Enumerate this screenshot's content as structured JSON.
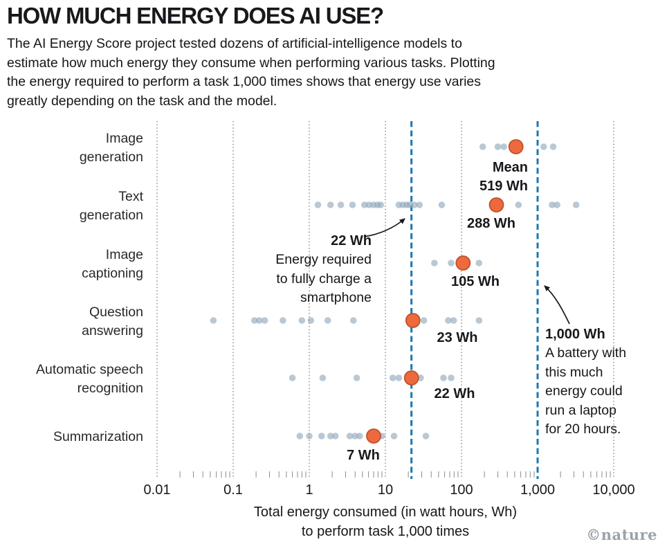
{
  "header": {
    "title": "HOW MUCH ENERGY DOES AI USE?",
    "subtitle_lines": [
      "The AI Energy Score project tested dozens of artificial-intelligence models to",
      "estimate how much energy they consume when performing various tasks. Plotting",
      "the energy required to perform a task 1,000 times shows that energy use varies",
      "greatly depending on the task and the model."
    ]
  },
  "chart_data": {
    "type": "scatter",
    "xscale": "log",
    "xlim": [
      0.01,
      10000
    ],
    "x_tick_values": [
      0.01,
      0.1,
      1,
      10,
      100,
      1000,
      10000
    ],
    "x_tick_labels": [
      "0.01",
      "0.1",
      "1",
      "10",
      "100",
      "1,000",
      "10,000"
    ],
    "xlabel_lines": [
      "Total energy consumed (in watt hours, Wh)",
      "to perform task 1,000 times"
    ],
    "grid": "vertical dotted line per decade",
    "legend": "orange point = mean per task, gray points = individual models",
    "rows": [
      {
        "label_lines": [
          "Image",
          "generation"
        ],
        "mean_wh": 519,
        "mean_label_lines": [
          "Mean",
          "519 Wh"
        ],
        "points_wh": [
          190,
          300,
          360,
          1200,
          1600
        ]
      },
      {
        "label_lines": [
          "Text",
          "generation"
        ],
        "mean_wh": 288,
        "mean_label_lines": [
          "288 Wh"
        ],
        "points_wh": [
          1.3,
          1.9,
          2.6,
          3.7,
          5.3,
          6.1,
          7,
          7.9,
          8.7,
          15,
          17,
          19,
          21,
          24,
          28,
          55,
          560,
          1550,
          1800,
          3200
        ]
      },
      {
        "label_lines": [
          "Image",
          "captioning"
        ],
        "mean_wh": 105,
        "mean_label_lines": [
          "105 Wh"
        ],
        "points_wh": [
          44,
          73,
          170
        ]
      },
      {
        "label_lines": [
          "Question",
          "answering"
        ],
        "mean_wh": 23,
        "mean_label_lines": [
          "23 Wh"
        ],
        "points_wh": [
          0.055,
          0.19,
          0.22,
          0.26,
          0.45,
          0.8,
          1.05,
          1.75,
          3.8,
          32,
          67,
          79,
          170
        ]
      },
      {
        "label_lines": [
          "Automatic speech",
          "recognition"
        ],
        "mean_wh": 22,
        "mean_label_lines": [
          "22 Wh"
        ],
        "points_wh": [
          0.6,
          1.5,
          4.2,
          12.5,
          15,
          29,
          58,
          73
        ]
      },
      {
        "label_lines": [
          "Summarization"
        ],
        "mean_wh": 7,
        "mean_label_lines": [
          "7 Wh"
        ],
        "points_wh": [
          0.75,
          1.0,
          1.45,
          1.9,
          2.2,
          3.4,
          4.0,
          4.6,
          9.0,
          13,
          34
        ]
      }
    ],
    "ref_lines": [
      {
        "value_wh": 22,
        "label": "22 Wh",
        "caption_lines": [
          "Energy required",
          "to fully charge a",
          "smartphone"
        ]
      },
      {
        "value_wh": 1000,
        "label": "1,000 Wh",
        "caption_lines": [
          "A battery with",
          "this much",
          "energy could",
          "run a laptop",
          "for 20 hours."
        ]
      }
    ],
    "colors": {
      "model_point": "#8ea6ba",
      "mean_point": "#ec6a3e",
      "mean_point_border": "#c2502a",
      "reference_line": "#1878b4",
      "gridline": "#6a6a6a",
      "text": "#17191c"
    }
  },
  "footer": {
    "credit": "©nature"
  }
}
